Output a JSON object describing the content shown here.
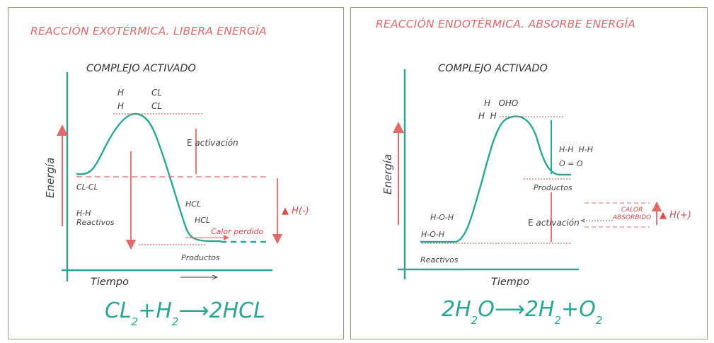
{
  "exo": {
    "title": "REACCIÓN EXOTÉRMICA. LIBERA ENERGÍA",
    "complejo": "COMPLEJO ACTIVADO",
    "atoms_row1_left": "H",
    "atoms_row1_right": "CL",
    "atoms_row2_left": "H",
    "atoms_row2_right": "CL",
    "e_activacion_prefix": "E",
    "e_activacion": "activación",
    "y_label": "Energía",
    "x_label": "Tiempo",
    "reactivos_molecule": "CL-CL",
    "reactivos_h": "H-H",
    "reactivos": "Reactivos",
    "hcl1": "HCL",
    "hcl2": "HCL",
    "calor": "Calor perdido",
    "productos": "Productos",
    "delta_h": "▲ H(-)",
    "formula": {
      "a": "CL",
      "a_sub": "2",
      "plus": "+",
      "b": "H",
      "b_sub": "2",
      "arrow": "⟶",
      "c": "2HCL"
    }
  },
  "endo": {
    "title": "REACCIÓN ENDOTÉRMICA. ABSORBE ENERGÍA",
    "complejo": "COMPLEJO ACTIVADO",
    "atoms_row1": "H   OHO",
    "atoms_row2": "H  H",
    "y_label": "Energía",
    "x_label": "Tiempo",
    "products_bonds": "H-H  H-H",
    "products_o": "O = O",
    "productos": "Productos",
    "hoh1": "H-O-H",
    "hoh2": "H-O-H",
    "reactivos": "Reactivos",
    "e_activacion_prefix": "E",
    "e_activacion": "activación",
    "calor_line1": "CALOR",
    "calor_line2": "ABSORBIDO",
    "delta_h": "▲ H(+)",
    "formula": {
      "a": "2H",
      "a_sub": "2",
      "b": "O",
      "arrow": "⟶",
      "c": "2H",
      "c_sub": "2",
      "plus": "+",
      "d": "O",
      "d_sub": "2"
    }
  },
  "colors": {
    "teal": "#2aa792",
    "red": "#e06a6a",
    "frame": "#8aa865"
  }
}
